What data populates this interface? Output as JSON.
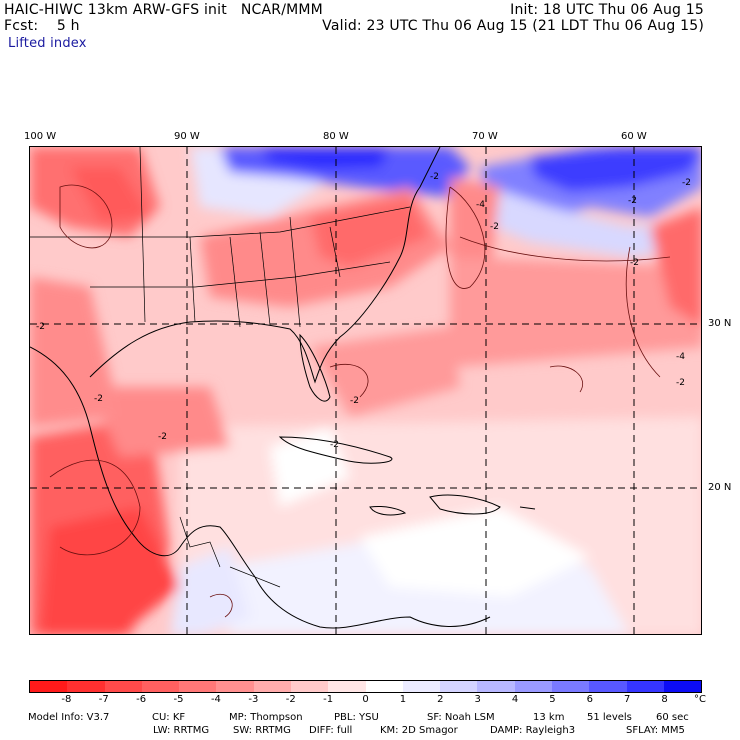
{
  "header": {
    "line1_left": "HAIC-HIWC 13km ARW-GFS init   NCAR/MMM",
    "line1_right": "Init: 18 UTC Thu 06 Aug 15",
    "line2_left": "Fcst:    5 h",
    "line2_right": "Valid: 23 UTC Thu 06 Aug 15 (21 LDT Thu 06 Aug 15)",
    "field_name": "Lifted index"
  },
  "map": {
    "longitude_labels": [
      "100 W",
      "90 W",
      "80 W",
      "70 W",
      "60 W"
    ],
    "latitude_labels": [
      "30 N",
      "20 N"
    ],
    "contour_labels": [
      "-2",
      "-2",
      "-2",
      "-2",
      "-4",
      "-2",
      "-2",
      "-4",
      "-2",
      "-2",
      "-2",
      "-2",
      "-2"
    ]
  },
  "colorbar": {
    "unit": "°C",
    "tick_labels": [
      "-8",
      "-7",
      "-6",
      "-5",
      "-4",
      "-3",
      "-2",
      "-1",
      "0",
      "1",
      "2",
      "3",
      "4",
      "5",
      "6",
      "7",
      "8"
    ],
    "colors": [
      "#ff1a1a",
      "#ff3030",
      "#ff4a4a",
      "#ff6060",
      "#ff7878",
      "#ff9090",
      "#ffacac",
      "#ffcaca",
      "#ffe6e6",
      "#ffffff",
      "#ebebff",
      "#d4d4ff",
      "#b8b8ff",
      "#9a9aff",
      "#7a7aff",
      "#5858ff",
      "#3535ff",
      "#0c0cf6"
    ]
  },
  "footer": {
    "line1": [
      "Model Info: V3.7",
      "CU: KF",
      "MP: Thompson",
      "PBL: YSU",
      "SF: Noah LSM",
      "13 km",
      "51 levels",
      "60 sec"
    ],
    "line2": [
      "LW: RRTMG",
      "SW: RRTMG",
      "DIFF: full",
      "KM: 2D Smagor",
      "DAMP: Rayleigh3",
      "SFLAY: MM5"
    ]
  }
}
